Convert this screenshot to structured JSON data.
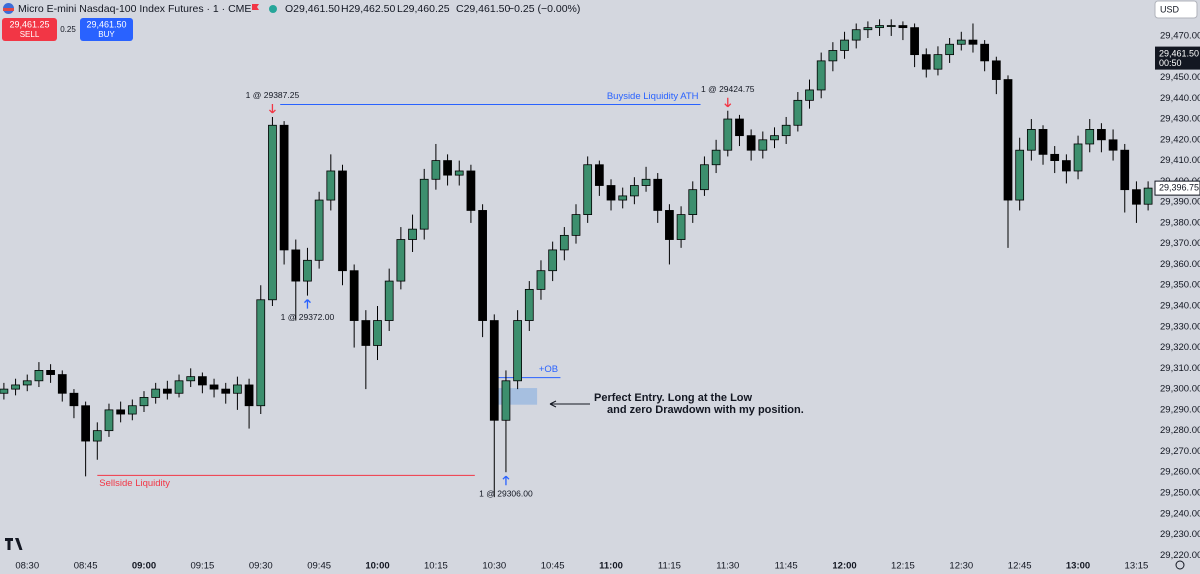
{
  "header": {
    "title": "Micro E-mini Nasdaq-100 Index Futures · 1 · CME",
    "open": "O29,461.50",
    "high": "H29,462.50",
    "low": "L29,460.25",
    "close": "C29,461.50",
    "change": "−0.25 (−0.00%)",
    "currency": "USD"
  },
  "trade_panel": {
    "sell_price": "29,461.25",
    "sell": "SELL",
    "spread": "0.25",
    "buy_price": "29,461.50",
    "buy": "BUY"
  },
  "chart_data": {
    "type": "candlestick",
    "up_color": "#3d8f6e",
    "down_color": "#000000",
    "x": [
      "08:24",
      "08:27",
      "08:30",
      "08:33",
      "08:36",
      "08:39",
      "08:42",
      "08:45",
      "08:48",
      "08:51",
      "08:54",
      "08:57",
      "09:00",
      "09:03",
      "09:06",
      "09:09",
      "09:12",
      "09:15",
      "09:18",
      "09:21",
      "09:24",
      "09:27",
      "09:30",
      "09:33",
      "09:36",
      "09:39",
      "09:42",
      "09:45",
      "09:48",
      "09:51",
      "09:54",
      "09:57",
      "10:00",
      "10:03",
      "10:06",
      "10:09",
      "10:12",
      "10:15",
      "10:18",
      "10:21",
      "10:24",
      "10:27",
      "10:30",
      "10:33",
      "10:36",
      "10:39",
      "10:42",
      "10:45",
      "10:48",
      "10:51",
      "10:54",
      "10:57",
      "11:00",
      "11:03",
      "11:06",
      "11:09",
      "11:12",
      "11:15",
      "11:18",
      "11:21",
      "11:24",
      "11:27",
      "11:30",
      "11:33",
      "11:36",
      "11:39",
      "11:42",
      "11:45",
      "11:48",
      "11:51",
      "11:54",
      "11:57",
      "12:00",
      "12:03",
      "12:06",
      "12:09",
      "12:12",
      "12:15",
      "12:18",
      "12:21",
      "12:24",
      "12:27",
      "12:30",
      "12:33",
      "12:36",
      "12:39",
      "12:42",
      "12:45",
      "12:48",
      "12:51",
      "12:54",
      "12:57",
      "13:00",
      "13:03",
      "13:06",
      "13:09",
      "13:12",
      "13:15",
      "13:18"
    ],
    "open": [
      29298,
      29300,
      29302,
      29304,
      29309,
      29307,
      29298,
      29292,
      29275,
      29280,
      29290,
      29288,
      29292,
      29296,
      29300,
      29298,
      29304,
      29306,
      29302,
      29300,
      29298,
      29302,
      29292,
      29343,
      29427,
      29367,
      29352,
      29362,
      29391,
      29405,
      29357,
      29333,
      29321,
      29333,
      29352,
      29372,
      29377,
      29401,
      29410,
      29403,
      29405,
      29386,
      29333,
      29285,
      29304,
      29333,
      29348,
      29357,
      29367,
      29374,
      29384,
      29408,
      29398,
      29391,
      29393,
      29398,
      29401,
      29386,
      29372,
      29384,
      29396,
      29408,
      29415,
      29430,
      29422,
      29415,
      29420,
      29422,
      29427,
      29439,
      29444,
      29458,
      29463,
      29468,
      29473,
      29474,
      29475,
      29475,
      29474,
      29461,
      29454,
      29461,
      29466,
      29468,
      29466,
      29458,
      29449,
      29391,
      29415,
      29425,
      29413,
      29410,
      29405,
      29418,
      29425,
      29420,
      29415,
      29396,
      29389
    ],
    "high": [
      29303,
      29305,
      29307,
      29313,
      29312,
      29309,
      29300,
      29294,
      29284,
      29293,
      29294,
      29295,
      29299,
      29303,
      29304,
      29307,
      29310,
      29308,
      29305,
      29303,
      29306,
      29305,
      29350,
      29431,
      29429,
      29372,
      29368,
      29395,
      29413,
      29408,
      29360,
      29338,
      29340,
      29358,
      29378,
      29384,
      29406,
      29418,
      29413,
      29410,
      29408,
      29389,
      29336,
      29309,
      29338,
      29352,
      29362,
      29371,
      29378,
      29389,
      29412,
      29410,
      29401,
      29397,
      29402,
      29407,
      29404,
      29389,
      29388,
      29400,
      29412,
      29420,
      29434,
      29432,
      29425,
      29424,
      29426,
      29431,
      29443,
      29449,
      29462,
      29467,
      29472,
      29476,
      29477,
      29478,
      29478,
      29477,
      29476,
      29464,
      29465,
      29469,
      29472,
      29476,
      29468,
      29460,
      29451,
      29421,
      29430,
      29427,
      29417,
      29413,
      29422,
      29430,
      29428,
      29425,
      29418,
      29400,
      29400
    ],
    "low": [
      29295,
      29297,
      29299,
      29301,
      29303,
      29294,
      29286,
      29258,
      29266,
      29277,
      29284,
      29285,
      29289,
      29293,
      29295,
      29296,
      29301,
      29298,
      29296,
      29293,
      29290,
      29281,
      29288,
      29340,
      29360,
      29333,
      29345,
      29358,
      29386,
      29350,
      29320,
      29300,
      29314,
      29328,
      29348,
      29366,
      29372,
      29396,
      29398,
      29398,
      29380,
      29325,
      29248,
      29260,
      29300,
      29328,
      29343,
      29352,
      29362,
      29370,
      29380,
      29393,
      29386,
      29387,
      29389,
      29395,
      29380,
      29360,
      29368,
      29380,
      29393,
      29404,
      29412,
      29417,
      29410,
      29411,
      29416,
      29418,
      29424,
      29435,
      29440,
      29453,
      29459,
      29464,
      29469,
      29470,
      29470,
      29468,
      29455,
      29450,
      29451,
      29457,
      29463,
      29462,
      29453,
      29442,
      29368,
      29386,
      29410,
      29408,
      29404,
      29399,
      29401,
      29414,
      29414,
      29410,
      29385,
      29380,
      29386
    ],
    "close": [
      29300,
      29302,
      29304,
      29309,
      29307,
      29298,
      29292,
      29275,
      29280,
      29290,
      29288,
      29292,
      29296,
      29300,
      29298,
      29304,
      29306,
      29302,
      29300,
      29298,
      29302,
      29292,
      29343,
      29427,
      29367,
      29352,
      29362,
      29391,
      29405,
      29357,
      29333,
      29321,
      29333,
      29352,
      29372,
      29377,
      29401,
      29410,
      29403,
      29405,
      29386,
      29333,
      29285,
      29304,
      29333,
      29348,
      29357,
      29367,
      29374,
      29384,
      29408,
      29398,
      29391,
      29393,
      29398,
      29401,
      29386,
      29372,
      29384,
      29396,
      29408,
      29415,
      29430,
      29422,
      29415,
      29420,
      29422,
      29427,
      29439,
      29444,
      29458,
      29463,
      29468,
      29473,
      29474,
      29475,
      29475,
      29474,
      29461,
      29454,
      29461,
      29466,
      29468,
      29466,
      29458,
      29449,
      29391,
      29415,
      29425,
      29413,
      29410,
      29405,
      29418,
      29425,
      29420,
      29415,
      29396,
      29389,
      29396.75
    ],
    "xlim": [
      "08:23",
      "13:19"
    ],
    "xticks": [
      "08:30",
      "08:45",
      "09:00",
      "09:15",
      "09:30",
      "09:45",
      "10:00",
      "10:15",
      "10:30",
      "10:45",
      "11:00",
      "11:15",
      "11:30",
      "11:45",
      "12:00",
      "12:15",
      "12:30",
      "12:45",
      "13:00",
      "13:15"
    ],
    "ylim": [
      29211,
      29487.3
    ],
    "yticks": [
      {
        "value": 29220,
        "label": "29,220.00"
      },
      {
        "value": 29230,
        "label": "29,230.00"
      },
      {
        "value": 29240,
        "label": "29,240.00"
      },
      {
        "value": 29250,
        "label": "29,250.00"
      },
      {
        "value": 29260,
        "label": "29,260.00"
      },
      {
        "value": 29270,
        "label": "29,270.00"
      },
      {
        "value": 29280,
        "label": "29,280.00"
      },
      {
        "value": 29290,
        "label": "29,290.00"
      },
      {
        "value": 29300,
        "label": "29,300.00"
      },
      {
        "value": 29310,
        "label": "29,310.00"
      },
      {
        "value": 29320,
        "label": "29,320.00"
      },
      {
        "value": 29330,
        "label": "29,330.00"
      },
      {
        "value": 29340,
        "label": "29,340.00"
      },
      {
        "value": 29350,
        "label": "29,350.00"
      },
      {
        "value": 29360,
        "label": "29,360.00"
      },
      {
        "value": 29370,
        "label": "29,370.00"
      },
      {
        "value": 29380,
        "label": "29,380.00"
      },
      {
        "value": 29390,
        "label": "29,390.00"
      },
      {
        "value": 29400,
        "label": "29,400.00"
      },
      {
        "value": 29410,
        "label": "29,410.00"
      },
      {
        "value": 29420,
        "label": "29,420.00"
      },
      {
        "value": 29430,
        "label": "29,430.00"
      },
      {
        "value": 29440,
        "label": "29,440.00"
      },
      {
        "value": 29450,
        "label": "29,450.00"
      },
      {
        "value": 29470,
        "label": "29,470.00"
      }
    ],
    "price_tags": [
      {
        "value": 29461.5,
        "label": "29,461.50",
        "countdown": "00:50"
      },
      {
        "value": 29396.75,
        "label": "29,396.75"
      }
    ],
    "levels": [
      {
        "label": "Buyside Liquidity ATH",
        "price": 29437,
        "from": "09:35",
        "to": "11:23",
        "color": "#2962ff"
      },
      {
        "label": "Sellside Liquidity",
        "price": 29258.5,
        "from": "08:48",
        "to": "10:25",
        "color": "#f23645"
      }
    ],
    "order_block": {
      "label": "+OB",
      "line": 29305.5,
      "line_to": "10:47",
      "top": 29300.5,
      "bottom": 29292.5,
      "from": "10:30",
      "to": "10:41",
      "color": "#2962ff"
    },
    "trades": [
      {
        "label": "1 @ 29387.25",
        "side": "sell",
        "time": "09:33"
      },
      {
        "label": "1 @ 29424.75",
        "side": "sell",
        "time": "11:30"
      },
      {
        "label": "1 @ 29372.00",
        "side": "buy",
        "time": "09:42"
      },
      {
        "label": "1 @ 29306.00",
        "side": "buy",
        "time": "10:33"
      }
    ],
    "callout": [
      "Perfect Entry. Long at the Low",
      "and zero Drawdown with my position."
    ]
  }
}
